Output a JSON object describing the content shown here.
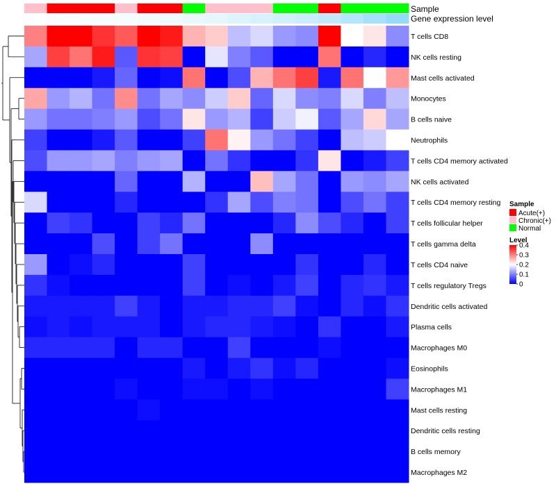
{
  "chart_data": {
    "type": "heatmap",
    "annotation_labels": {
      "sample": "Sample",
      "expression": "Gene expression level"
    },
    "sample_groups": [
      "Chronic(+)",
      "Acute(+)",
      "Acute(+)",
      "Acute(+)",
      "Chronic(+)",
      "Acute(+)",
      "Acute(+)",
      "Normal",
      "Chronic(+)",
      "Chronic(+)",
      "Chronic(+)",
      "Normal",
      "Normal",
      "Acute(+)",
      "Normal",
      "Normal",
      "Normal"
    ],
    "sample_colors": {
      "Acute(+)": "#ff0000",
      "Chronic(+)": "#ffc0cb",
      "Normal": "#00ff00"
    },
    "expression_levels": [
      0.02,
      0.03,
      0.04,
      0.05,
      0.06,
      0.08,
      0.1,
      0.13,
      0.16,
      0.2,
      0.24,
      0.28,
      0.33,
      0.38,
      0.45,
      0.55,
      0.65
    ],
    "expression_color_low": "#ffffff",
    "expression_color_high": "#5bc8f5",
    "rows": [
      "T cells CD8",
      "NK cells resting",
      "Mast cells activated",
      "Monocytes",
      "B cells naive",
      "Neutrophils",
      "T cells CD4 memory activated",
      "NK cells activated",
      "T cells CD4 memory resting",
      "T cells follicular helper",
      "T cells gamma delta",
      "T cells CD4 naive",
      "T cells regulatory  Tregs",
      "Dendritic cells activated",
      "Plasma cells",
      "Macrophages M0",
      "Eosinophils",
      "Macrophages M1",
      "Mast cells resting",
      "Dendritic cells resting",
      "B cells memory",
      "Macrophages M2"
    ],
    "values": [
      [
        0.3,
        0.4,
        0.4,
        0.36,
        0.33,
        0.4,
        0.38,
        0.26,
        0.24,
        0.15,
        0.17,
        0.12,
        0.11,
        0.4,
        0.2,
        0.22,
        0.11
      ],
      [
        0.13,
        0.35,
        0.31,
        0.38,
        0.07,
        0.36,
        0.35,
        0.0,
        0.18,
        0.1,
        0.07,
        0.0,
        0.0,
        0.31,
        0.0,
        0.03,
        0.0
      ],
      [
        0.0,
        0.0,
        0.0,
        0.02,
        0.08,
        0.0,
        0.01,
        0.31,
        0.0,
        0.06,
        0.26,
        0.31,
        0.35,
        0.02,
        0.31,
        0.2,
        0.28
      ],
      [
        0.27,
        0.12,
        0.14,
        0.09,
        0.29,
        0.09,
        0.13,
        0.11,
        0.16,
        0.24,
        0.08,
        0.17,
        0.11,
        0.1,
        0.17,
        0.1,
        0.15
      ],
      [
        0.12,
        0.09,
        0.09,
        0.1,
        0.12,
        0.06,
        0.09,
        0.22,
        0.12,
        0.14,
        0.05,
        0.16,
        0.19,
        0.07,
        0.13,
        0.23,
        0.13
      ],
      [
        0.05,
        0.0,
        0.0,
        0.02,
        0.07,
        0.0,
        0.0,
        0.05,
        0.31,
        0.21,
        0.12,
        0.09,
        0.05,
        0.0,
        0.15,
        0.16,
        0.2
      ],
      [
        0.06,
        0.12,
        0.12,
        0.13,
        0.1,
        0.12,
        0.13,
        0.0,
        0.09,
        0.04,
        0.0,
        0.0,
        0.04,
        0.22,
        0.0,
        0.02,
        0.05
      ],
      [
        0.0,
        0.0,
        0.0,
        0.0,
        0.08,
        0.0,
        0.0,
        0.14,
        0.0,
        0.0,
        0.25,
        0.13,
        0.09,
        0.0,
        0.12,
        0.11,
        0.13
      ],
      [
        0.17,
        0.0,
        0.0,
        0.0,
        0.03,
        0.0,
        0.0,
        0.0,
        0.04,
        0.13,
        0.06,
        0.1,
        0.09,
        0.0,
        0.06,
        0.09,
        0.05
      ],
      [
        0.0,
        0.05,
        0.04,
        0.0,
        0.0,
        0.05,
        0.03,
        0.09,
        0.0,
        0.0,
        0.0,
        0.03,
        0.11,
        0.06,
        0.03,
        0.0,
        0.05
      ],
      [
        0.0,
        0.0,
        0.0,
        0.06,
        0.0,
        0.05,
        0.09,
        0.0,
        0.0,
        0.0,
        0.11,
        0.0,
        0.0,
        0.0,
        0.0,
        0.0,
        0.0
      ],
      [
        0.12,
        0.0,
        0.01,
        0.03,
        0.0,
        0.0,
        0.0,
        0.05,
        0.0,
        0.0,
        0.0,
        0.0,
        0.04,
        0.0,
        0.0,
        0.03,
        0.0
      ],
      [
        0.04,
        0.01,
        0.0,
        0.0,
        0.0,
        0.0,
        0.0,
        0.05,
        0.0,
        0.01,
        0.0,
        0.02,
        0.05,
        0.0,
        0.03,
        0.04,
        0.02
      ],
      [
        0.02,
        0.02,
        0.02,
        0.02,
        0.05,
        0.02,
        0.0,
        0.02,
        0.02,
        0.03,
        0.03,
        0.05,
        0.01,
        0.0,
        0.03,
        0.01,
        0.04
      ],
      [
        0.01,
        0.02,
        0.01,
        0.02,
        0.02,
        0.02,
        0.0,
        0.02,
        0.03,
        0.03,
        0.02,
        0.01,
        0.0,
        0.04,
        0.0,
        0.0,
        0.02
      ],
      [
        0.03,
        0.03,
        0.03,
        0.03,
        0.0,
        0.03,
        0.03,
        0.0,
        0.0,
        0.05,
        0.0,
        0.0,
        0.0,
        0.01,
        0.0,
        0.0,
        0.0
      ],
      [
        0.0,
        0.0,
        0.0,
        0.0,
        0.0,
        0.0,
        0.0,
        0.02,
        0.0,
        0.02,
        0.04,
        0.01,
        0.03,
        0.0,
        0.0,
        0.0,
        0.01
      ],
      [
        0.0,
        0.0,
        0.0,
        0.0,
        0.01,
        0.0,
        0.0,
        0.01,
        0.01,
        0.0,
        0.01,
        0.0,
        0.0,
        0.0,
        0.0,
        0.0,
        0.05
      ],
      [
        0.0,
        0.0,
        0.0,
        0.0,
        0.0,
        0.01,
        0.0,
        0.0,
        0.0,
        0.0,
        0.0,
        0.0,
        0.0,
        0.0,
        0.0,
        0.0,
        0.0
      ],
      [
        0.0,
        0.0,
        0.0,
        0.0,
        0.0,
        0.0,
        0.0,
        0.0,
        0.0,
        0.0,
        0.0,
        0.0,
        0.0,
        0.0,
        0.0,
        0.0,
        0.0
      ],
      [
        0.0,
        0.0,
        0.0,
        0.0,
        0.0,
        0.0,
        0.0,
        0.0,
        0.0,
        0.0,
        0.0,
        0.0,
        0.0,
        0.0,
        0.0,
        0.0,
        0.0
      ],
      [
        0.0,
        0.0,
        0.0,
        0.0,
        0.0,
        0.0,
        0.0,
        0.0,
        0.0,
        0.0,
        0.0,
        0.0,
        0.0,
        0.0,
        0.0,
        0.0,
        0.0
      ]
    ],
    "color_scale": {
      "min": 0,
      "max": 0.4,
      "colors": [
        "#0000ff",
        "#ffffff",
        "#ff0000"
      ],
      "midpoint": 0.2
    },
    "legend": {
      "sample_title": "Sample",
      "sample_entries": [
        "Acute(+)",
        "Chronic(+)",
        "Normal"
      ],
      "level_title": "Level",
      "level_ticks": [
        "0.4",
        "0.3",
        "0.2",
        "0.1",
        "0"
      ],
      "level_tick_values": [
        0.4,
        0.3,
        0.2,
        0.1,
        0
      ],
      "placement": "right"
    },
    "dendrogram": "rows"
  }
}
